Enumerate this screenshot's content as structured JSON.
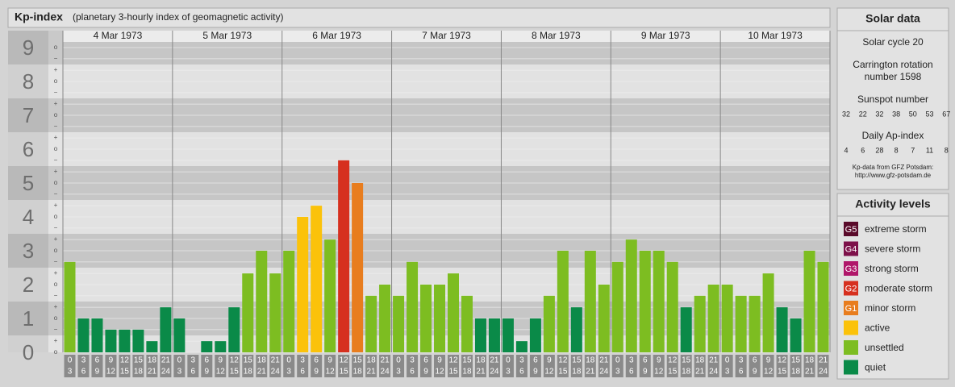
{
  "chart_data": {
    "type": "bar",
    "title": "Kp-index",
    "subtitle": "(planetary 3-hourly index of geomagnetic activity)",
    "days": [
      "4 Mar 1973",
      "5 Mar 1973",
      "6 Mar 1973",
      "7 Mar 1973",
      "8 Mar 1973",
      "9 Mar 1973",
      "10 Mar 1973"
    ],
    "hours": [
      [
        "0",
        "3"
      ],
      [
        "3",
        "6"
      ],
      [
        "6",
        "9"
      ],
      [
        "9",
        "12"
      ],
      [
        "12",
        "15"
      ],
      [
        "15",
        "18"
      ],
      [
        "18",
        "21"
      ],
      [
        "21",
        "24"
      ]
    ],
    "values": [
      2.67,
      1,
      1,
      0.67,
      0.67,
      0.67,
      0.33,
      1.33,
      1,
      0,
      0.33,
      0.33,
      1.33,
      2.33,
      3,
      2.33,
      3,
      4,
      4.33,
      3.33,
      5.67,
      5,
      1.67,
      2,
      1.67,
      2.67,
      2,
      2,
      2.33,
      1.67,
      1,
      1,
      1,
      0.33,
      1,
      1.67,
      3,
      1.33,
      3,
      2,
      2.67,
      3.33,
      3,
      3,
      2.67,
      1.33,
      1.67,
      2,
      2,
      1.67,
      1.67,
      2.33,
      1.33,
      1,
      3,
      2.67
    ],
    "colors": [
      "#7dbd21",
      "#0a8a48",
      "#0a8a48",
      "#0a8a48",
      "#0a8a48",
      "#0a8a48",
      "#0a8a48",
      "#0a8a48",
      "#0a8a48",
      "#0a8a48",
      "#0a8a48",
      "#0a8a48",
      "#0a8a48",
      "#7dbd21",
      "#7dbd21",
      "#7dbd21",
      "#7dbd21",
      "#fbc20a",
      "#fbc20a",
      "#7dbd21",
      "#d6301f",
      "#e87d1e",
      "#7dbd21",
      "#7dbd21",
      "#7dbd21",
      "#7dbd21",
      "#7dbd21",
      "#7dbd21",
      "#7dbd21",
      "#7dbd21",
      "#0a8a48",
      "#0a8a48",
      "#0a8a48",
      "#0a8a48",
      "#0a8a48",
      "#7dbd21",
      "#7dbd21",
      "#0a8a48",
      "#7dbd21",
      "#7dbd21",
      "#7dbd21",
      "#7dbd21",
      "#7dbd21",
      "#7dbd21",
      "#7dbd21",
      "#0a8a48",
      "#7dbd21",
      "#7dbd21",
      "#7dbd21",
      "#7dbd21",
      "#7dbd21",
      "#7dbd21",
      "#0a8a48",
      "#0a8a48",
      "#7dbd21",
      "#7dbd21"
    ],
    "ylim": [
      0,
      9.5
    ],
    "yticks": [
      0,
      1,
      2,
      3,
      4,
      5,
      6,
      7,
      8,
      9
    ],
    "minor_ticks": [
      {
        "value": 0,
        "label": "o"
      },
      {
        "value": 0.33,
        "label": "+"
      },
      {
        "value": 0.67,
        "label": "−"
      },
      {
        "value": 1,
        "label": "o"
      },
      {
        "value": 1.33,
        "label": "+"
      },
      {
        "value": 1.67,
        "label": "−"
      },
      {
        "value": 2,
        "label": "o"
      },
      {
        "value": 2.33,
        "label": "+"
      },
      {
        "value": 2.67,
        "label": "−"
      },
      {
        "value": 3,
        "label": "o"
      },
      {
        "value": 3.33,
        "label": "+"
      },
      {
        "value": 3.67,
        "label": "−"
      },
      {
        "value": 4,
        "label": "o"
      },
      {
        "value": 4.33,
        "label": "+"
      },
      {
        "value": 4.67,
        "label": "−"
      },
      {
        "value": 5,
        "label": "o"
      },
      {
        "value": 5.33,
        "label": "+"
      },
      {
        "value": 5.67,
        "label": "−"
      },
      {
        "value": 6,
        "label": "o"
      },
      {
        "value": 6.33,
        "label": "+"
      },
      {
        "value": 6.67,
        "label": "−"
      },
      {
        "value": 7,
        "label": "o"
      },
      {
        "value": 7.33,
        "label": "+"
      },
      {
        "value": 7.67,
        "label": "−"
      },
      {
        "value": 8,
        "label": "o"
      },
      {
        "value": 8.33,
        "label": "+"
      },
      {
        "value": 8.67,
        "label": "−"
      },
      {
        "value": 9,
        "label": "o"
      }
    ],
    "grid": true
  },
  "solar": {
    "title": "Solar data",
    "cycle": "Solar cycle 20",
    "carrington": [
      "Carrington rotation",
      "number 1598"
    ],
    "sunspot_label": "Sunspot number",
    "sunspot_values": [
      32,
      22,
      32,
      38,
      50,
      53,
      67
    ],
    "ap_label": "Daily Ap-index",
    "ap_values": [
      4,
      6,
      28,
      8,
      7,
      11,
      8
    ],
    "source": [
      "Kp-data from GFZ Potsdam:",
      "http://www.gfz-potsdam.de"
    ]
  },
  "legend": {
    "title": "Activity levels",
    "levels": [
      {
        "code": "G5",
        "name": "extreme storm",
        "color": "#5a0a2a"
      },
      {
        "code": "G4",
        "name": "severe storm",
        "color": "#7d1049"
      },
      {
        "code": "G3",
        "name": "strong storm",
        "color": "#b0176a"
      },
      {
        "code": "G2",
        "name": "moderate storm",
        "color": "#d6301f"
      },
      {
        "code": "G1",
        "name": "minor storm",
        "color": "#e87d1e"
      },
      {
        "name": "active",
        "color": "#fbc20a"
      },
      {
        "name": "unsettled",
        "color": "#7dbd21"
      },
      {
        "name": "quiet",
        "color": "#0a8a48"
      }
    ]
  }
}
